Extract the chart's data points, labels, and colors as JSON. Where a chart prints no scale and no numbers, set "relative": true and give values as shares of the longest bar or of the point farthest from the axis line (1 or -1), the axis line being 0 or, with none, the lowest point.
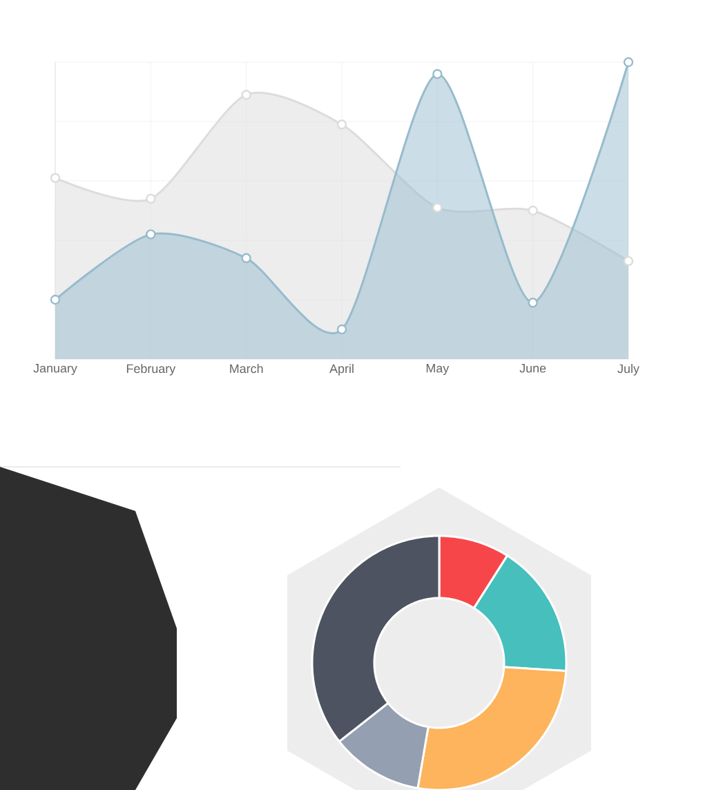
{
  "chart_data": [
    {
      "type": "area",
      "categories": [
        "January",
        "February",
        "March",
        "April",
        "May",
        "June",
        "July"
      ],
      "series": [
        {
          "color": "#dcdcdc",
          "values": [
            0.61,
            0.54,
            0.89,
            0.79,
            0.51,
            0.5,
            0.33
          ]
        },
        {
          "color": "#97bbcd",
          "values": [
            0.2,
            0.42,
            0.34,
            0.1,
            0.96,
            0.19,
            1
          ]
        }
      ],
      "relative": true,
      "grid": true,
      "marker": "circle"
    },
    {
      "type": "donut",
      "categories": [
        null,
        null,
        null,
        null,
        null
      ],
      "values": [
        9,
        17,
        26.7,
        11.7,
        35.6
      ],
      "colors": [
        "#f7464a",
        "#46bfbd",
        "#fdb45c",
        "#949fb1",
        "#4d5360"
      ]
    }
  ]
}
